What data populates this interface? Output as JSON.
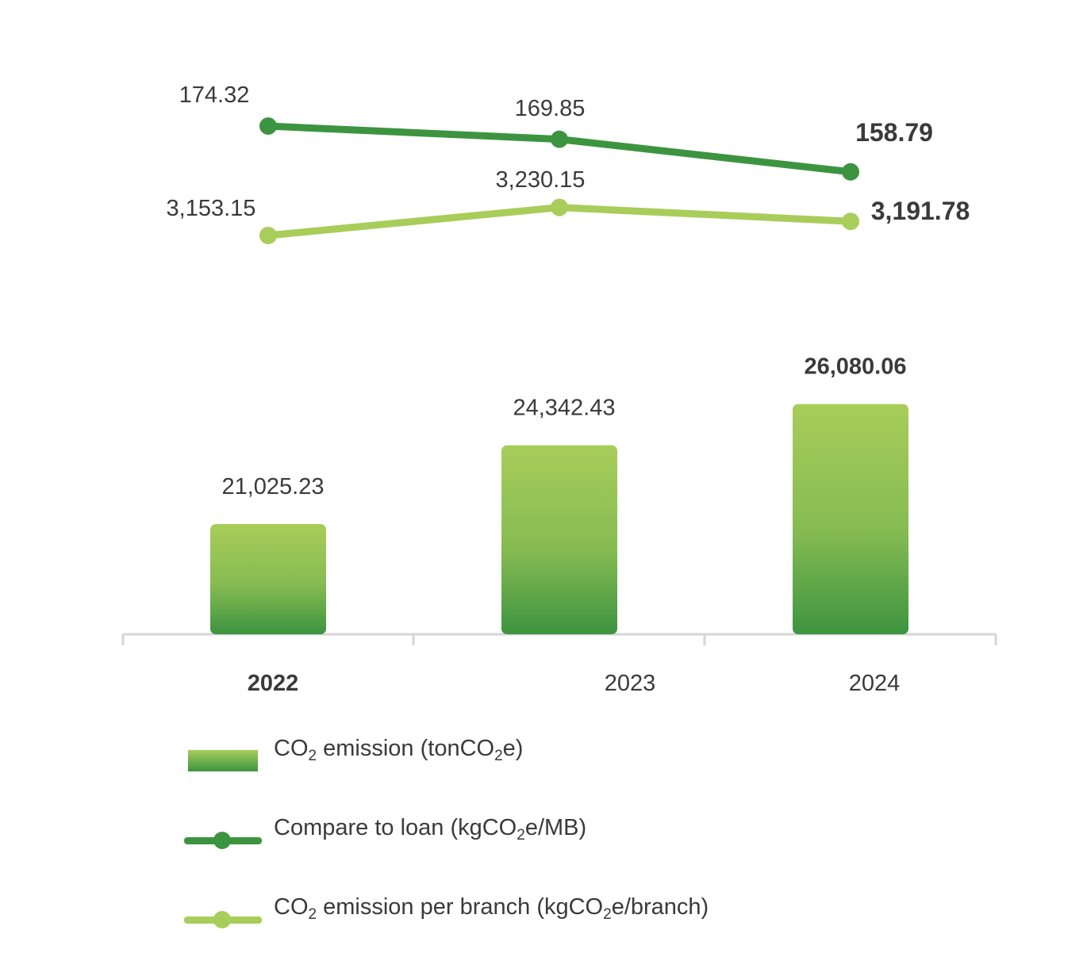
{
  "chart_data": {
    "type": "bar",
    "categories": [
      "2022",
      "2023",
      "2024"
    ],
    "series": [
      {
        "name": "CO2 emission (tonCO2e)",
        "kind": "bar",
        "values": [
          21025.23,
          24342.43,
          26080.06
        ],
        "labels": [
          "21,025.23",
          "24,342.43",
          "26,080.06"
        ],
        "color": "#a8cd5a"
      },
      {
        "name": "Compare to loan (kgCO2e/MB)",
        "kind": "line",
        "values": [
          174.32,
          169.85,
          158.79
        ],
        "labels": [
          "174.32",
          "169.85",
          "158.79"
        ],
        "color": "#3d9440"
      },
      {
        "name": "CO2 emission per branch (kgCO2e/branch)",
        "kind": "line",
        "values": [
          3153.15,
          3230.15,
          3191.78
        ],
        "labels": [
          "3,153.15",
          "3,230.15",
          "3,191.78"
        ],
        "color": "#a8cd5a"
      }
    ],
    "highlight_category": "2024",
    "legend_position": "bottom",
    "grid": false
  },
  "legend": {
    "bar": {
      "prefix": "CO",
      "sub": "2",
      "mid": " emission (tonCO",
      "sub2": "2",
      "suffix": "e)"
    },
    "loan": {
      "prefix": "Compare to loan (kgCO",
      "sub": "2",
      "suffix": "e/MB)"
    },
    "branch": {
      "prefix": "CO",
      "sub": "2",
      "mid": " emission per branch (kgCO",
      "sub2": "2",
      "suffix": "e/branch)"
    }
  }
}
